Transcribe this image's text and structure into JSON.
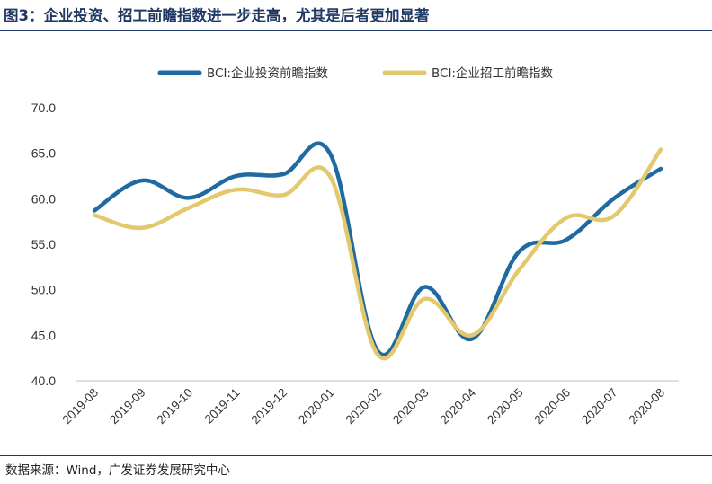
{
  "title": "图3：企业投资、招工前瞻指数进一步走高，尤其是后者更加显著",
  "source": "数据来源：Wind，广发证券发展研究中心",
  "colors": {
    "series1": "#1f6aa0",
    "series2": "#e3c86d",
    "title": "#1f3864"
  },
  "chart_data": {
    "type": "line",
    "title": "图3：企业投资、招工前瞻指数进一步走高，尤其是后者更加显著",
    "xlabel": "",
    "ylabel": "",
    "ylim": [
      40.0,
      70.0
    ],
    "yticks": [
      "70.0",
      "65.0",
      "60.0",
      "55.0",
      "50.0",
      "45.0",
      "40.0"
    ],
    "categories": [
      "2019-08",
      "2019-09",
      "2019-10",
      "2019-11",
      "2019-12",
      "2020-01",
      "2020-02",
      "2020-03",
      "2020-04",
      "2020-05",
      "2020-06",
      "2020-07",
      "2020-08"
    ],
    "legend_position": "top",
    "series": [
      {
        "name": "BCI:企业投资前瞻指数",
        "color": "#1f6aa0",
        "values": [
          58.7,
          62.0,
          60.1,
          62.5,
          62.7,
          64.9,
          43.3,
          50.3,
          44.6,
          54.2,
          55.5,
          60.0,
          63.3
        ]
      },
      {
        "name": "BCI:企业招工前瞻指数",
        "color": "#e3c86d",
        "values": [
          58.2,
          56.8,
          59.0,
          61.0,
          60.4,
          62.4,
          42.9,
          49.0,
          45.0,
          52.2,
          57.9,
          58.1,
          65.4
        ]
      }
    ]
  }
}
